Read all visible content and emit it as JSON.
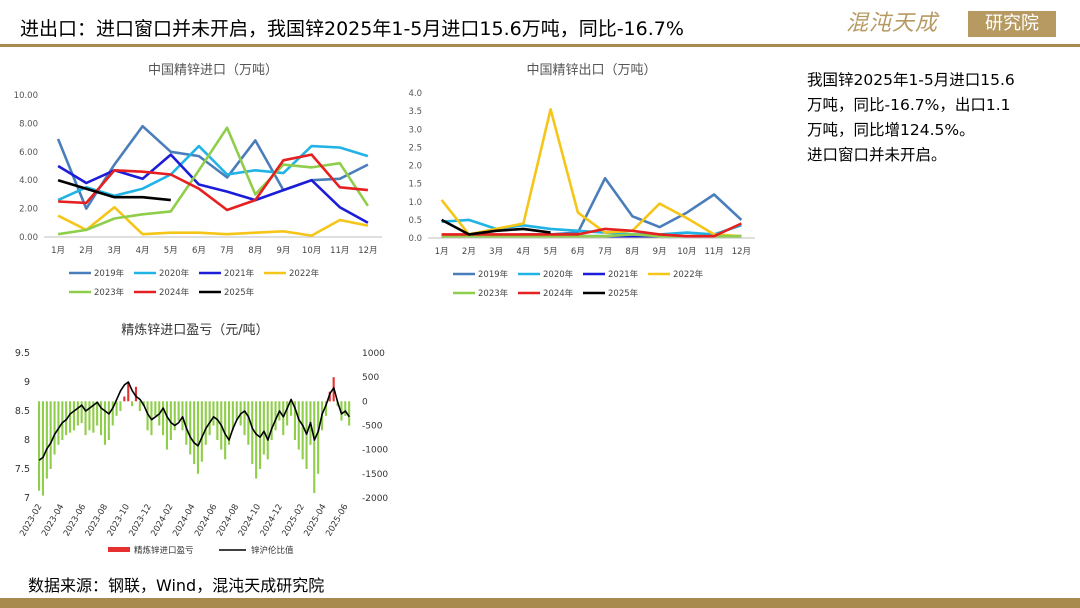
{
  "slide": {
    "title": "进出口：进口窗口并未开启，我国锌2025年1-5月进口15.6万吨，同比-16.7%",
    "summary_lines": [
      "我国锌2025年1-5月进口15.6",
      "万吨，同比-16.7%，出口1.1",
      "万吨，同比增124.5%。",
      "进口窗口并未开启。"
    ],
    "source": "数据来源：钢联，Wind，混沌天成研究院",
    "logo_script": "混沌天成",
    "logo_box": "研究院"
  },
  "colors": {
    "rule": "#a88a4e",
    "logo": "#b79a62",
    "s2019": "#4a7ebb",
    "s2020": "#22b3e6",
    "s2021": "#1c1cd9",
    "s2022": "#f5c518",
    "s2023": "#8fce4a",
    "s2024": "#e62020",
    "s2025": "#000000",
    "profit_bar": "#e63030",
    "loss_bar": "#8fce4a",
    "ratio_line": "#000000"
  },
  "chart_data": [
    {
      "type": "line",
      "title": "中国精锌进口（万吨）",
      "categories": [
        "1月",
        "2月",
        "3月",
        "4月",
        "5月",
        "6月",
        "7月",
        "8月",
        "9月",
        "10月",
        "11月",
        "12月"
      ],
      "ylim": [
        0,
        10
      ],
      "yticks": [
        "0.00",
        "2.00",
        "4.00",
        "6.00",
        "8.00",
        "10.00"
      ],
      "legend_position": "bottom",
      "series": [
        {
          "name": "2019年",
          "values": [
            6.9,
            2.0,
            5.1,
            7.8,
            6.0,
            5.7,
            4.2,
            6.8,
            3.3,
            4.0,
            4.1,
            5.1
          ]
        },
        {
          "name": "2020年",
          "values": [
            2.6,
            3.5,
            2.9,
            3.4,
            4.4,
            6.4,
            4.4,
            4.7,
            4.5,
            6.4,
            6.3,
            5.7
          ]
        },
        {
          "name": "2021年",
          "values": [
            5.0,
            3.8,
            4.7,
            4.1,
            5.8,
            3.7,
            3.2,
            2.6,
            3.3,
            4.0,
            2.1,
            1.0
          ]
        },
        {
          "name": "2022年",
          "values": [
            1.5,
            0.5,
            2.1,
            0.2,
            0.3,
            0.3,
            0.2,
            0.3,
            0.4,
            0.1,
            1.2,
            0.8
          ]
        },
        {
          "name": "2023年",
          "values": [
            0.2,
            0.5,
            1.3,
            1.6,
            1.8,
            4.7,
            7.7,
            3.0,
            5.1,
            4.9,
            5.2,
            2.2
          ]
        },
        {
          "name": "2024年",
          "values": [
            2.5,
            2.4,
            4.7,
            4.6,
            4.4,
            3.4,
            1.9,
            2.6,
            5.4,
            5.8,
            3.5,
            3.3
          ]
        },
        {
          "name": "2025年",
          "values": [
            4.0,
            3.4,
            2.8,
            2.8,
            2.6,
            null,
            null,
            null,
            null,
            null,
            null,
            null
          ]
        }
      ]
    },
    {
      "type": "line",
      "title": "中国精锌出口（万吨）",
      "categories": [
        "1月",
        "2月",
        "3月",
        "4月",
        "5月",
        "6月",
        "7月",
        "8月",
        "9月",
        "10月",
        "11月",
        "12月"
      ],
      "ylim": [
        0,
        4
      ],
      "yticks": [
        "0.0",
        "0.5",
        "1.0",
        "1.5",
        "2.0",
        "2.5",
        "3.0",
        "3.5",
        "4.0"
      ],
      "legend_position": "bottom",
      "series": [
        {
          "name": "2019年",
          "values": [
            0.05,
            0.05,
            0.05,
            0.1,
            0.1,
            0.15,
            1.65,
            0.6,
            0.3,
            0.7,
            1.2,
            0.5
          ]
        },
        {
          "name": "2020年",
          "values": [
            0.45,
            0.5,
            0.25,
            0.35,
            0.25,
            0.2,
            0.15,
            0.1,
            0.1,
            0.15,
            0.1,
            0.35
          ]
        },
        {
          "name": "2021年",
          "values": [
            0.05,
            0.05,
            0.05,
            0.05,
            0.05,
            0.05,
            0.05,
            0.05,
            0.05,
            0.05,
            0.05,
            0.05
          ]
        },
        {
          "name": "2022年",
          "values": [
            1.05,
            0.1,
            0.25,
            0.4,
            3.55,
            0.7,
            0.15,
            0.2,
            0.95,
            0.55,
            0.1,
            0.05
          ]
        },
        {
          "name": "2023年",
          "values": [
            0.05,
            0.05,
            0.05,
            0.05,
            0.05,
            0.05,
            0.05,
            0.1,
            0.05,
            0.05,
            0.05,
            0.05
          ]
        },
        {
          "name": "2024年",
          "values": [
            0.1,
            0.1,
            0.1,
            0.1,
            0.1,
            0.1,
            0.25,
            0.2,
            0.1,
            0.05,
            0.05,
            0.4
          ]
        },
        {
          "name": "2025年",
          "values": [
            0.5,
            0.1,
            0.2,
            0.25,
            0.15,
            null,
            null,
            null,
            null,
            null,
            null,
            null
          ]
        }
      ]
    },
    {
      "type": "bar_line_dual_axis",
      "title": "精炼锌进口盈亏（元/吨）",
      "y_left": {
        "ylim": [
          7,
          9.5
        ],
        "ticks": [
          "7",
          "7.5",
          "8",
          "8.5",
          "9",
          "9.5"
        ]
      },
      "y_right": {
        "ylim": [
          -2000,
          1000
        ],
        "ticks": [
          "-2000",
          "-1500",
          "-1000",
          "-500",
          "0",
          "500",
          "1000"
        ]
      },
      "x_ticks": [
        "2023-02",
        "2023-04",
        "2023-06",
        "2023-08",
        "2023-10",
        "2023-12",
        "2024-02",
        "2024-04",
        "2024-06",
        "2024-08",
        "2024-10",
        "2024-12",
        "2025-02",
        "2025-04",
        "2025-06"
      ],
      "legend": [
        "精炼锌进口盈亏",
        "锌沪伦比值"
      ],
      "profit_loss_series": [
        -1850,
        -1950,
        -1600,
        -1400,
        -1100,
        -900,
        -800,
        -700,
        -650,
        -600,
        -500,
        -450,
        -700,
        -600,
        -650,
        -500,
        -700,
        -900,
        -800,
        -500,
        -300,
        -200,
        100,
        400,
        -100,
        300,
        -200,
        -100,
        -600,
        -700,
        -300,
        -500,
        -700,
        -1000,
        -800,
        -600,
        -400,
        -600,
        -900,
        -1100,
        -1300,
        -1500,
        -1250,
        -900,
        -700,
        -500,
        -800,
        -1000,
        -1200,
        -900,
        -600,
        -400,
        -500,
        -700,
        -900,
        -1300,
        -1600,
        -1400,
        -1100,
        -1200,
        -800,
        -600,
        -400,
        -700,
        -500,
        -300,
        -800,
        -1000,
        -1200,
        -1400,
        -900,
        -1900,
        -1500,
        -600,
        -300,
        200,
        500,
        -100,
        -400,
        -300,
        -500
      ],
      "ratio_series": [
        7.65,
        7.7,
        7.85,
        7.95,
        8.1,
        8.2,
        8.3,
        8.35,
        8.45,
        8.5,
        8.55,
        8.6,
        8.5,
        8.55,
        8.6,
        8.65,
        8.55,
        8.5,
        8.45,
        8.55,
        8.7,
        8.85,
        8.95,
        9.0,
        8.85,
        8.75,
        8.7,
        8.6,
        8.45,
        8.35,
        8.4,
        8.45,
        8.55,
        8.4,
        8.3,
        8.25,
        8.3,
        8.4,
        8.2,
        8.05,
        7.95,
        7.9,
        8.05,
        8.2,
        8.3,
        8.4,
        8.35,
        8.25,
        8.1,
        8.0,
        8.2,
        8.35,
        8.45,
        8.5,
        8.4,
        8.2,
        8.1,
        8.05,
        8.15,
        8.0,
        8.2,
        8.35,
        8.5,
        8.4,
        8.55,
        8.7,
        8.55,
        8.35,
        8.25,
        8.1,
        8.3,
        8.0,
        8.15,
        8.45,
        8.6,
        8.8,
        8.9,
        8.65,
        8.45,
        8.5,
        8.4
      ]
    }
  ]
}
